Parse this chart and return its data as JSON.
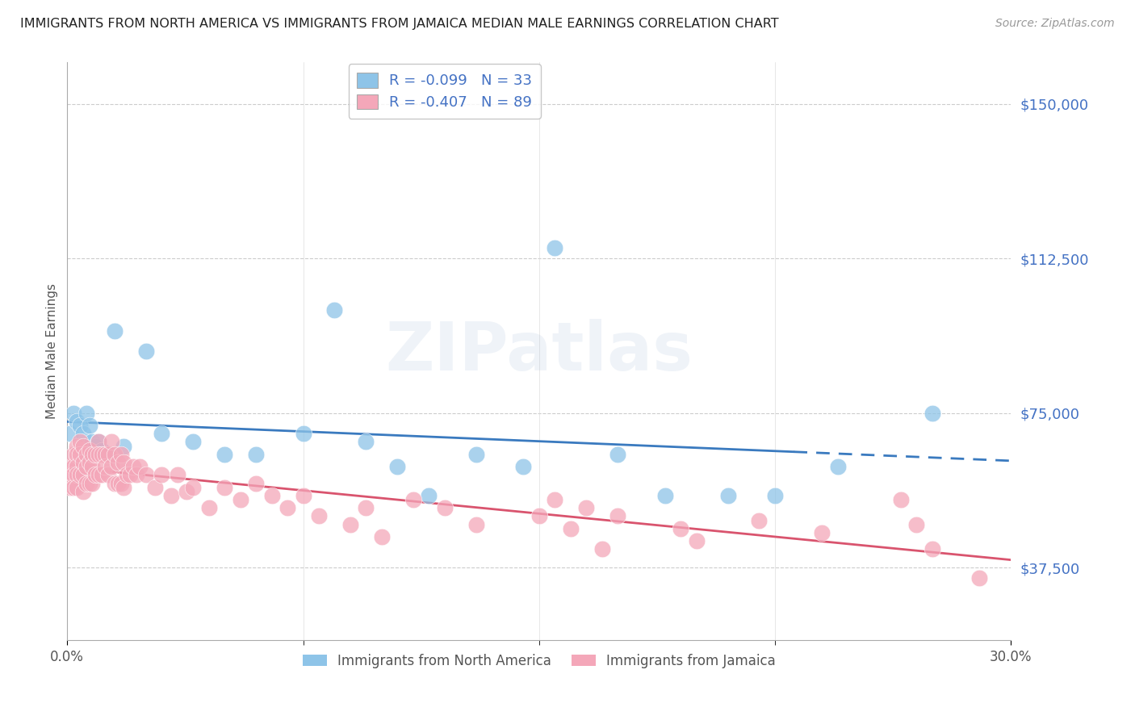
{
  "title": "IMMIGRANTS FROM NORTH AMERICA VS IMMIGRANTS FROM JAMAICA MEDIAN MALE EARNINGS CORRELATION CHART",
  "source": "Source: ZipAtlas.com",
  "ylabel": "Median Male Earnings",
  "blue_color": "#8ec4e8",
  "pink_color": "#f4a7b9",
  "blue_line_color": "#3a7abf",
  "pink_line_color": "#d9546e",
  "text_color": "#4472C4",
  "legend_R1": "-0.099",
  "legend_N1": "33",
  "legend_R2": "-0.407",
  "legend_N2": "89",
  "watermark": "ZIPatlas",
  "xmin": 0.0,
  "xmax": 0.3,
  "ymin": 20000,
  "ymax": 160000,
  "ytick_vals": [
    37500,
    75000,
    112500,
    150000
  ],
  "blue_scatter_x": [
    0.001,
    0.002,
    0.003,
    0.004,
    0.005,
    0.006,
    0.007,
    0.008,
    0.009,
    0.01,
    0.011,
    0.013,
    0.015,
    0.018,
    0.025,
    0.03,
    0.04,
    0.05,
    0.06,
    0.075,
    0.085,
    0.095,
    0.105,
    0.115,
    0.13,
    0.145,
    0.155,
    0.175,
    0.19,
    0.21,
    0.225,
    0.245,
    0.275
  ],
  "blue_scatter_y": [
    70000,
    75000,
    73000,
    72000,
    70000,
    75000,
    72000,
    68000,
    67000,
    68000,
    66000,
    65000,
    95000,
    67000,
    90000,
    70000,
    68000,
    65000,
    65000,
    70000,
    100000,
    68000,
    62000,
    55000,
    65000,
    62000,
    115000,
    65000,
    55000,
    55000,
    55000,
    62000,
    75000
  ],
  "pink_scatter_x": [
    0.001,
    0.001,
    0.001,
    0.002,
    0.002,
    0.002,
    0.002,
    0.003,
    0.003,
    0.003,
    0.003,
    0.003,
    0.004,
    0.004,
    0.004,
    0.005,
    0.005,
    0.005,
    0.005,
    0.006,
    0.006,
    0.006,
    0.007,
    0.007,
    0.007,
    0.008,
    0.008,
    0.008,
    0.009,
    0.009,
    0.01,
    0.01,
    0.01,
    0.011,
    0.011,
    0.012,
    0.012,
    0.013,
    0.013,
    0.014,
    0.014,
    0.015,
    0.015,
    0.016,
    0.016,
    0.017,
    0.017,
    0.018,
    0.018,
    0.019,
    0.02,
    0.021,
    0.022,
    0.023,
    0.025,
    0.028,
    0.03,
    0.033,
    0.035,
    0.038,
    0.04,
    0.045,
    0.05,
    0.055,
    0.06,
    0.065,
    0.07,
    0.075,
    0.08,
    0.09,
    0.095,
    0.1,
    0.11,
    0.12,
    0.13,
    0.15,
    0.155,
    0.16,
    0.165,
    0.17,
    0.175,
    0.195,
    0.2,
    0.22,
    0.24,
    0.265,
    0.27,
    0.275,
    0.29
  ],
  "pink_scatter_y": [
    62000,
    60000,
    57000,
    65000,
    62000,
    60000,
    57000,
    67000,
    65000,
    62000,
    60000,
    57000,
    68000,
    65000,
    60000,
    67000,
    63000,
    60000,
    56000,
    65000,
    62000,
    58000,
    66000,
    63000,
    58000,
    65000,
    62000,
    58000,
    65000,
    60000,
    68000,
    65000,
    60000,
    65000,
    60000,
    65000,
    62000,
    65000,
    60000,
    68000,
    62000,
    65000,
    58000,
    63000,
    58000,
    65000,
    58000,
    63000,
    57000,
    60000,
    60000,
    62000,
    60000,
    62000,
    60000,
    57000,
    60000,
    55000,
    60000,
    56000,
    57000,
    52000,
    57000,
    54000,
    58000,
    55000,
    52000,
    55000,
    50000,
    48000,
    52000,
    45000,
    54000,
    52000,
    48000,
    50000,
    54000,
    47000,
    52000,
    42000,
    50000,
    47000,
    44000,
    49000,
    46000,
    54000,
    48000,
    42000,
    35000
  ]
}
